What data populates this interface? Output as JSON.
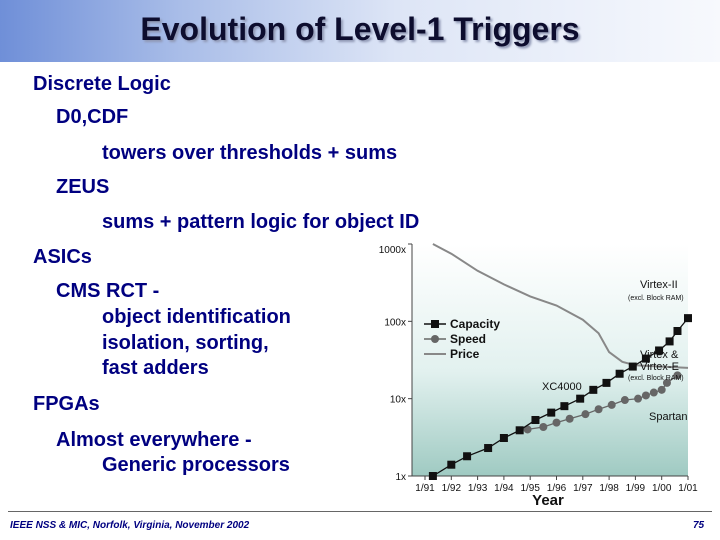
{
  "title": "Evolution of Level-1 Triggers",
  "bullets": [
    "Discrete Logic",
    "D0,CDF",
    "towers over thresholds + sums",
    "ZEUS",
    "sums + pattern logic for object ID",
    "ASICs",
    "CMS RCT -",
    "object identification",
    "isolation, sorting,",
    "fast adders",
    "FPGAs",
    "Almost everywhere -",
    "Generic processors"
  ],
  "footer": "IEEE NSS & MIC, Norfolk, Virginia, November 2002",
  "page_number": "75",
  "chart_data": {
    "type": "line",
    "xlabel": "Year",
    "x": [
      "1/91",
      "1/92",
      "1/93",
      "1/94",
      "1/95",
      "1/96",
      "1/97",
      "1/98",
      "1/99",
      "1/00",
      "1/01"
    ],
    "y_ticks": [
      "1x",
      "10x",
      "100x",
      "1000x"
    ],
    "y_scale": "log",
    "ylim": [
      1,
      1000
    ],
    "legend": [
      "Capacity",
      "Speed",
      "Price"
    ],
    "legend_position": "upper-middle",
    "annotations": [
      "Virtex-II",
      "(excl. Block RAM)",
      "Virtex &",
      "Virtex-E",
      "(excl. Block RAM)",
      "XC4000",
      "Spartan"
    ],
    "series": [
      {
        "name": "Capacity",
        "marker": "square",
        "points": [
          [
            0.3,
            1.0
          ],
          [
            1,
            1.4
          ],
          [
            1.6,
            1.8
          ],
          [
            2.4,
            2.3
          ],
          [
            3,
            3.1
          ],
          [
            3.6,
            3.9
          ],
          [
            4.2,
            5.3
          ],
          [
            4.8,
            6.6
          ],
          [
            5.3,
            8.0
          ],
          [
            5.9,
            10
          ],
          [
            6.4,
            13
          ],
          [
            6.9,
            16
          ],
          [
            7.4,
            21
          ],
          [
            7.9,
            26
          ],
          [
            8.4,
            33
          ],
          [
            8.9,
            42
          ],
          [
            9.3,
            55
          ],
          [
            9.6,
            75
          ],
          [
            10,
            110
          ]
        ]
      },
      {
        "name": "Speed",
        "marker": "circle",
        "points": [
          [
            3.9,
            4.0
          ],
          [
            4.5,
            4.3
          ],
          [
            5,
            4.9
          ],
          [
            5.5,
            5.5
          ],
          [
            6.1,
            6.3
          ],
          [
            6.6,
            7.3
          ],
          [
            7.1,
            8.3
          ],
          [
            7.6,
            9.6
          ],
          [
            8.1,
            10
          ],
          [
            8.4,
            11
          ],
          [
            8.7,
            12
          ],
          [
            9,
            13
          ],
          [
            9.2,
            16
          ],
          [
            9.6,
            20
          ]
        ]
      },
      {
        "name": "Price",
        "marker": "none",
        "points": [
          [
            0.3,
            1000
          ],
          [
            1,
            750
          ],
          [
            2,
            450
          ],
          [
            3,
            300
          ],
          [
            4,
            210
          ],
          [
            5,
            160
          ],
          [
            6,
            105
          ],
          [
            6.6,
            70
          ],
          [
            7,
            40
          ],
          [
            7.5,
            30
          ],
          [
            8,
            27
          ],
          [
            9,
            26
          ],
          [
            10,
            25
          ]
        ]
      }
    ],
    "colors": {
      "Capacity": "#111111",
      "Speed": "#666666",
      "Price": "#888888"
    },
    "grid": false
  }
}
